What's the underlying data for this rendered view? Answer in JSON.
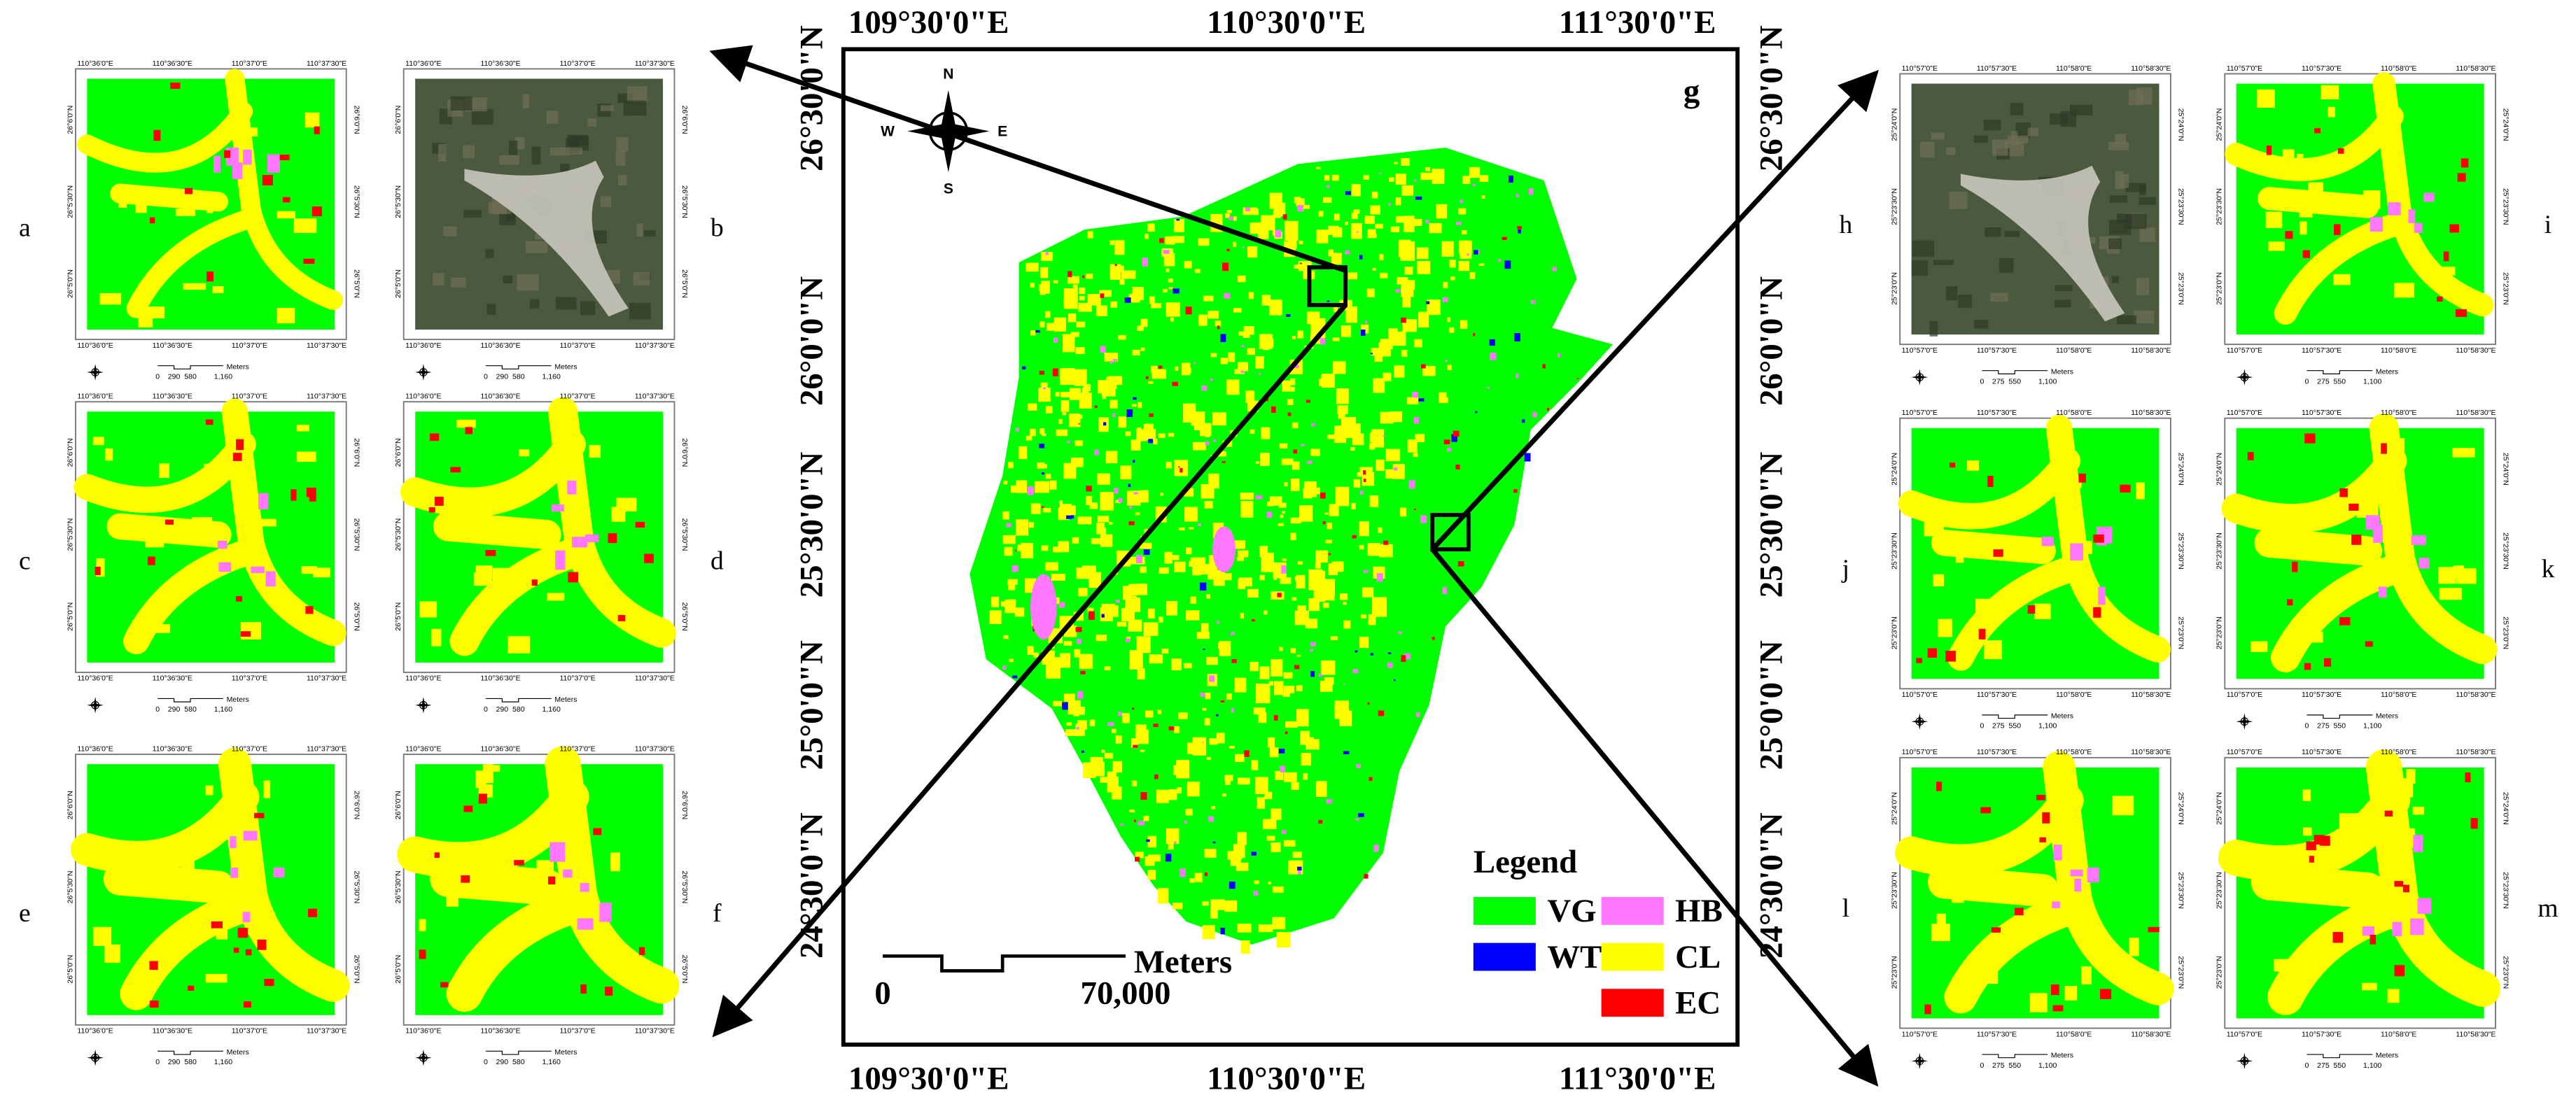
{
  "main_map": {
    "label": "g",
    "top_labels": [
      "109°30'0\"E",
      "110°30'0\"E",
      "111°30'0\"E"
    ],
    "side_labels": [
      "26°30'0\"N",
      "26°0'0\"N",
      "25°30'0\"N",
      "25°0'0\"N",
      "24°30'0\"N"
    ],
    "compass": {
      "n": "N",
      "s": "S",
      "w": "W",
      "e": "E"
    },
    "scale": {
      "unit": "Meters",
      "start": "0",
      "end": "70,000"
    },
    "legend": {
      "title": "Legend",
      "items": [
        {
          "code": "VG",
          "color": "#00ff00"
        },
        {
          "code": "WT",
          "color": "#0000ff"
        },
        {
          "code": "HB",
          "color": "#ff77ff"
        },
        {
          "code": "CL",
          "color": "#ffff00"
        },
        {
          "code": "EC",
          "color": "#ff0000"
        }
      ]
    }
  },
  "left_axes": {
    "x_labels": [
      "110°36'0\"E",
      "110°36'30\"E",
      "110°37'0\"E",
      "110°37'30\"E"
    ],
    "y_labels": [
      "26°6'0\"N",
      "26°5'30\"N",
      "26°5'0\"N"
    ],
    "scale_labels": [
      "0",
      "290",
      "580",
      "1,160"
    ],
    "scale_unit": "Meters"
  },
  "right_axes": {
    "x_labels": [
      "110°57'0\"E",
      "110°57'30\"E",
      "110°58'0\"E",
      "110°58'30\"E"
    ],
    "y_labels": [
      "25°24'0\"N",
      "25°23'30\"N",
      "25°23'0\"N"
    ],
    "scale_labels": [
      "0",
      "275",
      "550",
      "1,100"
    ],
    "scale_unit": "Meters"
  },
  "left_panels": [
    {
      "label": "a"
    },
    {
      "label": "b"
    },
    {
      "label": "c"
    },
    {
      "label": "d"
    },
    {
      "label": "e"
    },
    {
      "label": "f"
    }
  ],
  "right_panels": [
    {
      "label": "h"
    },
    {
      "label": "i"
    },
    {
      "label": "j"
    },
    {
      "label": "k"
    },
    {
      "label": "l"
    },
    {
      "label": "m"
    }
  ]
}
